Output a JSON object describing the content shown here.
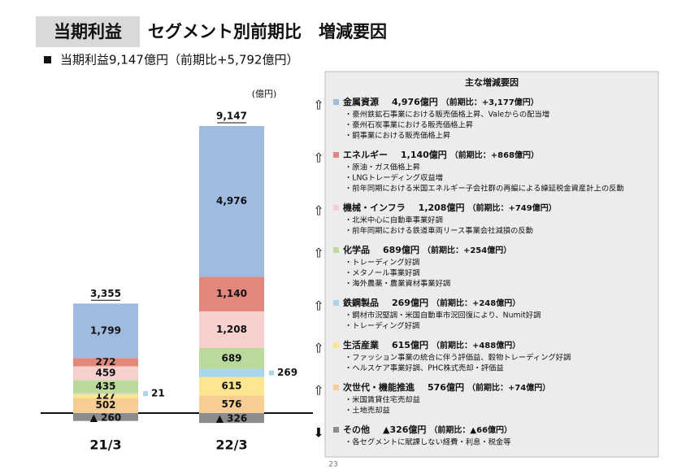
{
  "chart_data": {
    "type": "stacked-bar",
    "title_box": "当期利益",
    "title": "セグメント別前期比　増減要因",
    "subtitle": "当期利益9,147億円（前期比+5,792億円）",
    "unit": "(億円)",
    "categories": [
      "21/3",
      "22/3"
    ],
    "totals": {
      "values": [
        3355,
        9147
      ],
      "value_labels": [
        "3,355",
        "9,147"
      ]
    },
    "series": [
      {
        "name": "その他",
        "color": "#8c8c8c",
        "values": [
          -260,
          -326
        ],
        "value_labels": [
          "▲ 260",
          "▲ 326"
        ],
        "arrow": "⬇",
        "amount": "▲326億円",
        "change": "（前期比：▲66億円）",
        "notes": [
          "・各セグメントに賦課しない経費・利息・税金等"
        ]
      },
      {
        "name": "次世代・機能推進",
        "color": "#f6cd93",
        "values": [
          502,
          576
        ],
        "value_labels": [
          "502",
          "576"
        ],
        "arrow": "⇧",
        "amount": "576億円",
        "change": "（前期比：+74億円）",
        "notes": [
          "・米国賃貸住宅売却益",
          "・土地売却益"
        ]
      },
      {
        "name": "生活産業",
        "color": "#fde68f",
        "values": [
          127,
          615
        ],
        "value_labels": [
          "127",
          "615"
        ],
        "arrow": "⇧",
        "amount": "615億円",
        "change": "（前期比：+488億円）",
        "notes": [
          "・ファッション事業の統合に伴う評価益、穀物トレーディング好調",
          "・ヘルスケア事業好調、PHC株式売却・評価益"
        ]
      },
      {
        "name": "鉄鋼製品",
        "color": "#a9d6ea",
        "values": [
          21,
          269
        ],
        "value_labels": [
          "21",
          "269"
        ],
        "arrow": "⇧",
        "amount": "269億円",
        "change": "（前期比：+248億円）",
        "notes": [
          "・鋼材市況堅調・米国自動車市況回復により、Numit好調",
          "・トレーディング好調"
        ]
      },
      {
        "name": "化学品",
        "color": "#bcd99c",
        "values": [
          435,
          689
        ],
        "value_labels": [
          "435",
          "689"
        ],
        "arrow": "⇧",
        "amount": "689億円",
        "change": "（前期比：+254億円）",
        "notes": [
          "・トレーディング好調",
          "・メタノール事業好調",
          "・海外農薬・農業資材事業好調"
        ]
      },
      {
        "name": "機械・インフラ",
        "color": "#f5d0cc",
        "values": [
          459,
          1208
        ],
        "value_labels": [
          "459",
          "1,208"
        ],
        "arrow": "⇧",
        "amount": "1,208億円",
        "change": "（前期比：+749億円）",
        "notes": [
          "・北米中心に自動車事業好調",
          "・前年同期における鉄道車両リース事業会社減損の反動"
        ]
      },
      {
        "name": "エネルギー",
        "color": "#e2877c",
        "values": [
          272,
          1140
        ],
        "value_labels": [
          "272",
          "1,140"
        ],
        "arrow": "⇧",
        "amount": "1,140億円",
        "change": "（前期比：+868億円）",
        "notes": [
          "・原油・ガス価格上昇",
          "・LNGトレーディング収益増",
          "・前年同期における米国エネルギー子会社群の再編による繰延税金資産計上の反動"
        ]
      },
      {
        "name": "金属資源",
        "color": "#a0bbe2",
        "values": [
          1799,
          4976
        ],
        "value_labels": [
          "1,799",
          "4,976"
        ],
        "arrow": "⇧",
        "amount": "4,976億円",
        "change": "（前期比：+3,177億円）",
        "notes": [
          "・豪州鉄鉱石事業における販売価格上昇、Valeからの配当増",
          "・豪州石炭事業における販売価格上昇",
          "・銅事業における販売価格上昇"
        ]
      }
    ]
  },
  "panel": {
    "title": "主な増減要因"
  },
  "page_number": "23"
}
